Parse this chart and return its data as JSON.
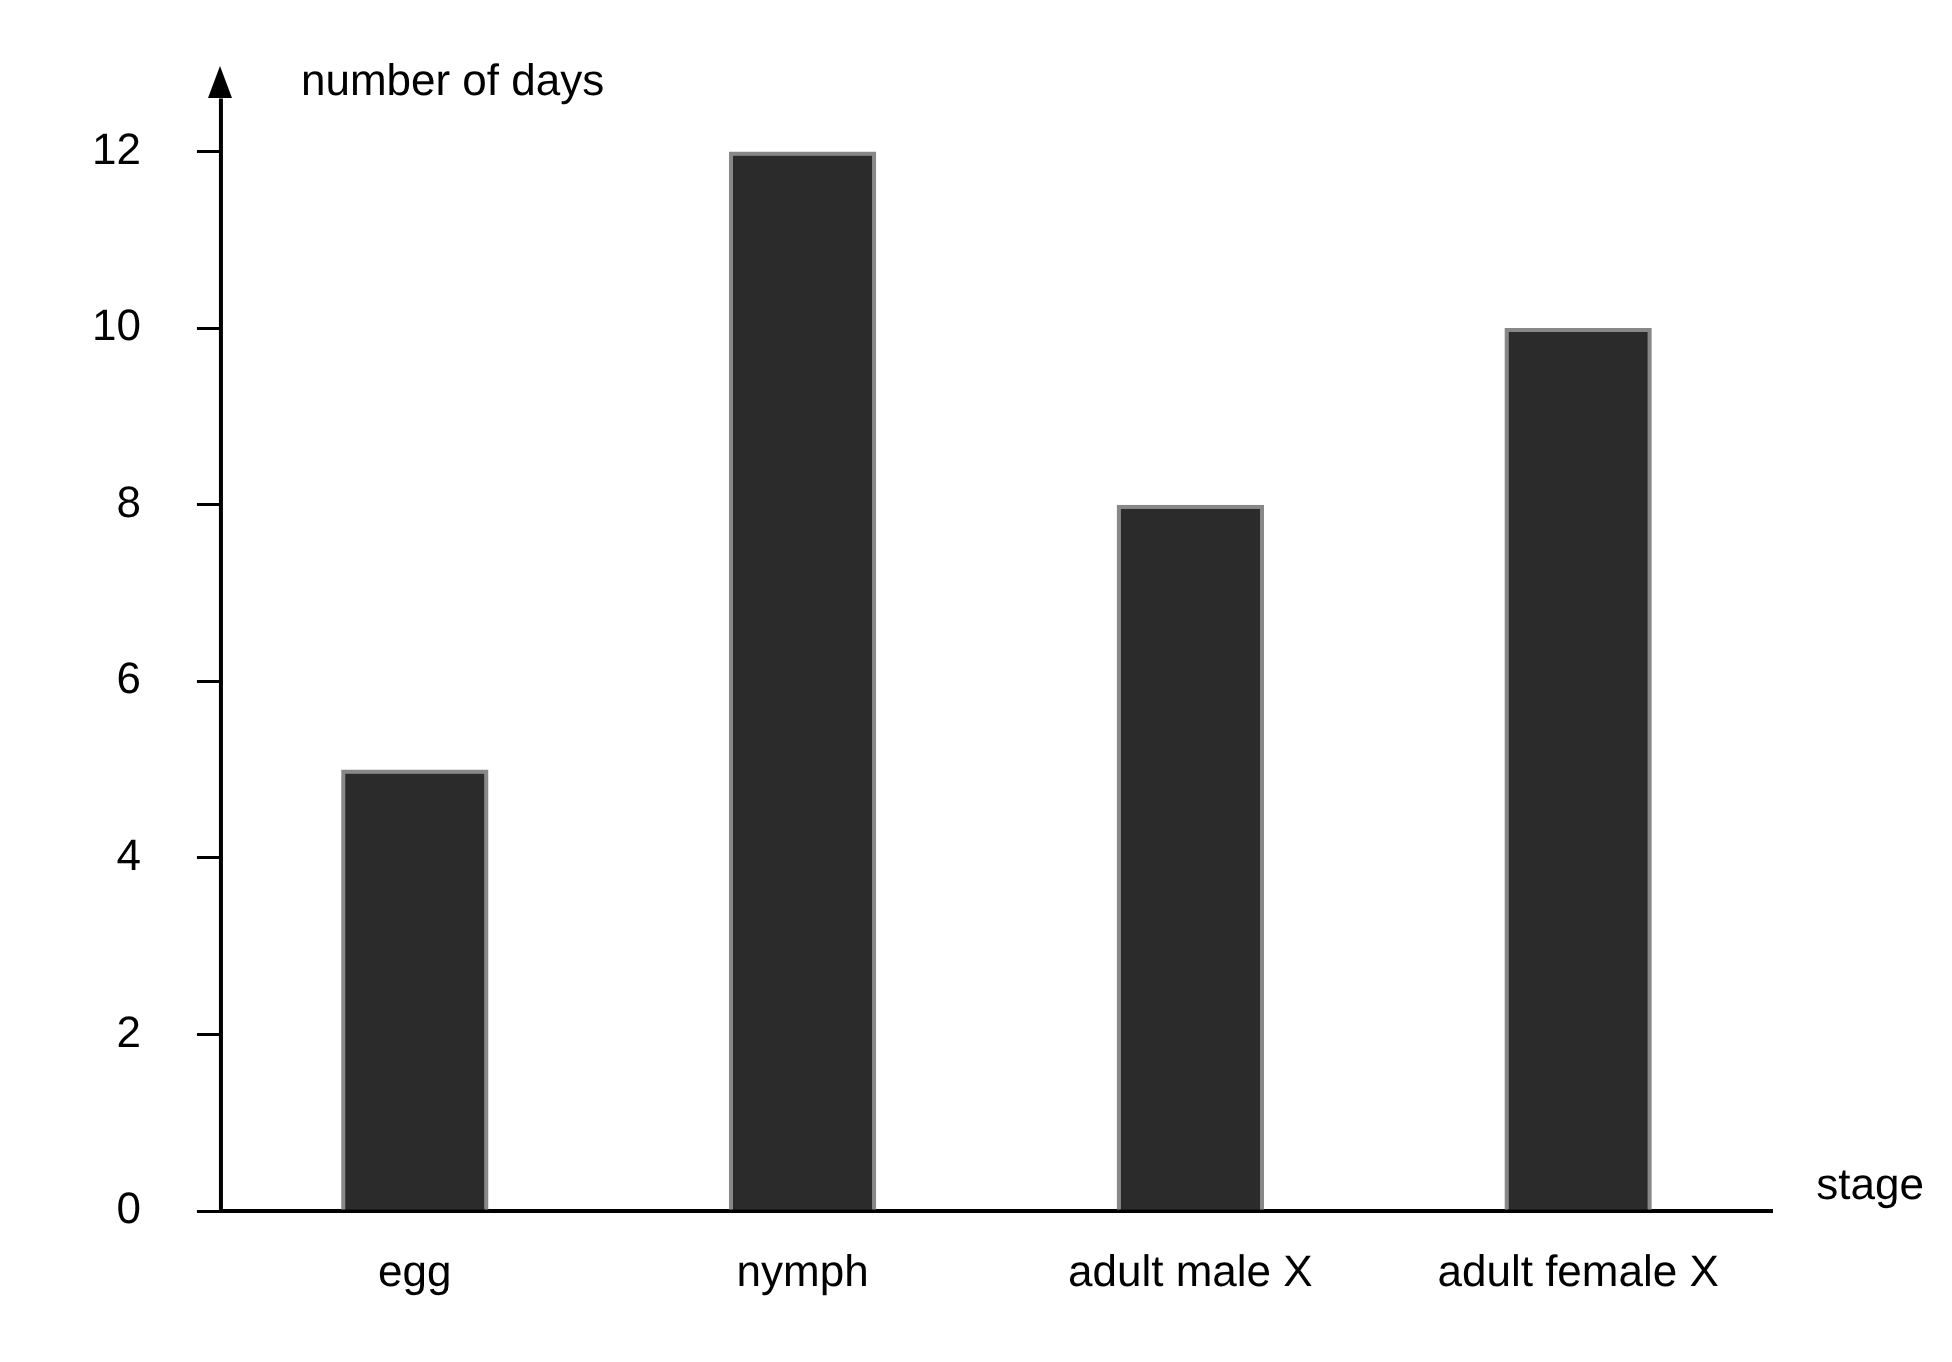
{
  "chart_data": {
    "type": "bar",
    "xlabel": "stage",
    "ylabel": "number of days",
    "categories": [
      "egg",
      "nymph",
      "adult male X",
      "adult female X"
    ],
    "values": [
      5,
      12,
      8,
      10
    ],
    "color": "#2b2b2b",
    "ylim": [
      0,
      12.6
    ],
    "yticks": [
      0,
      2,
      4,
      6,
      8,
      10,
      12
    ],
    "grid": false,
    "legend": false
  }
}
